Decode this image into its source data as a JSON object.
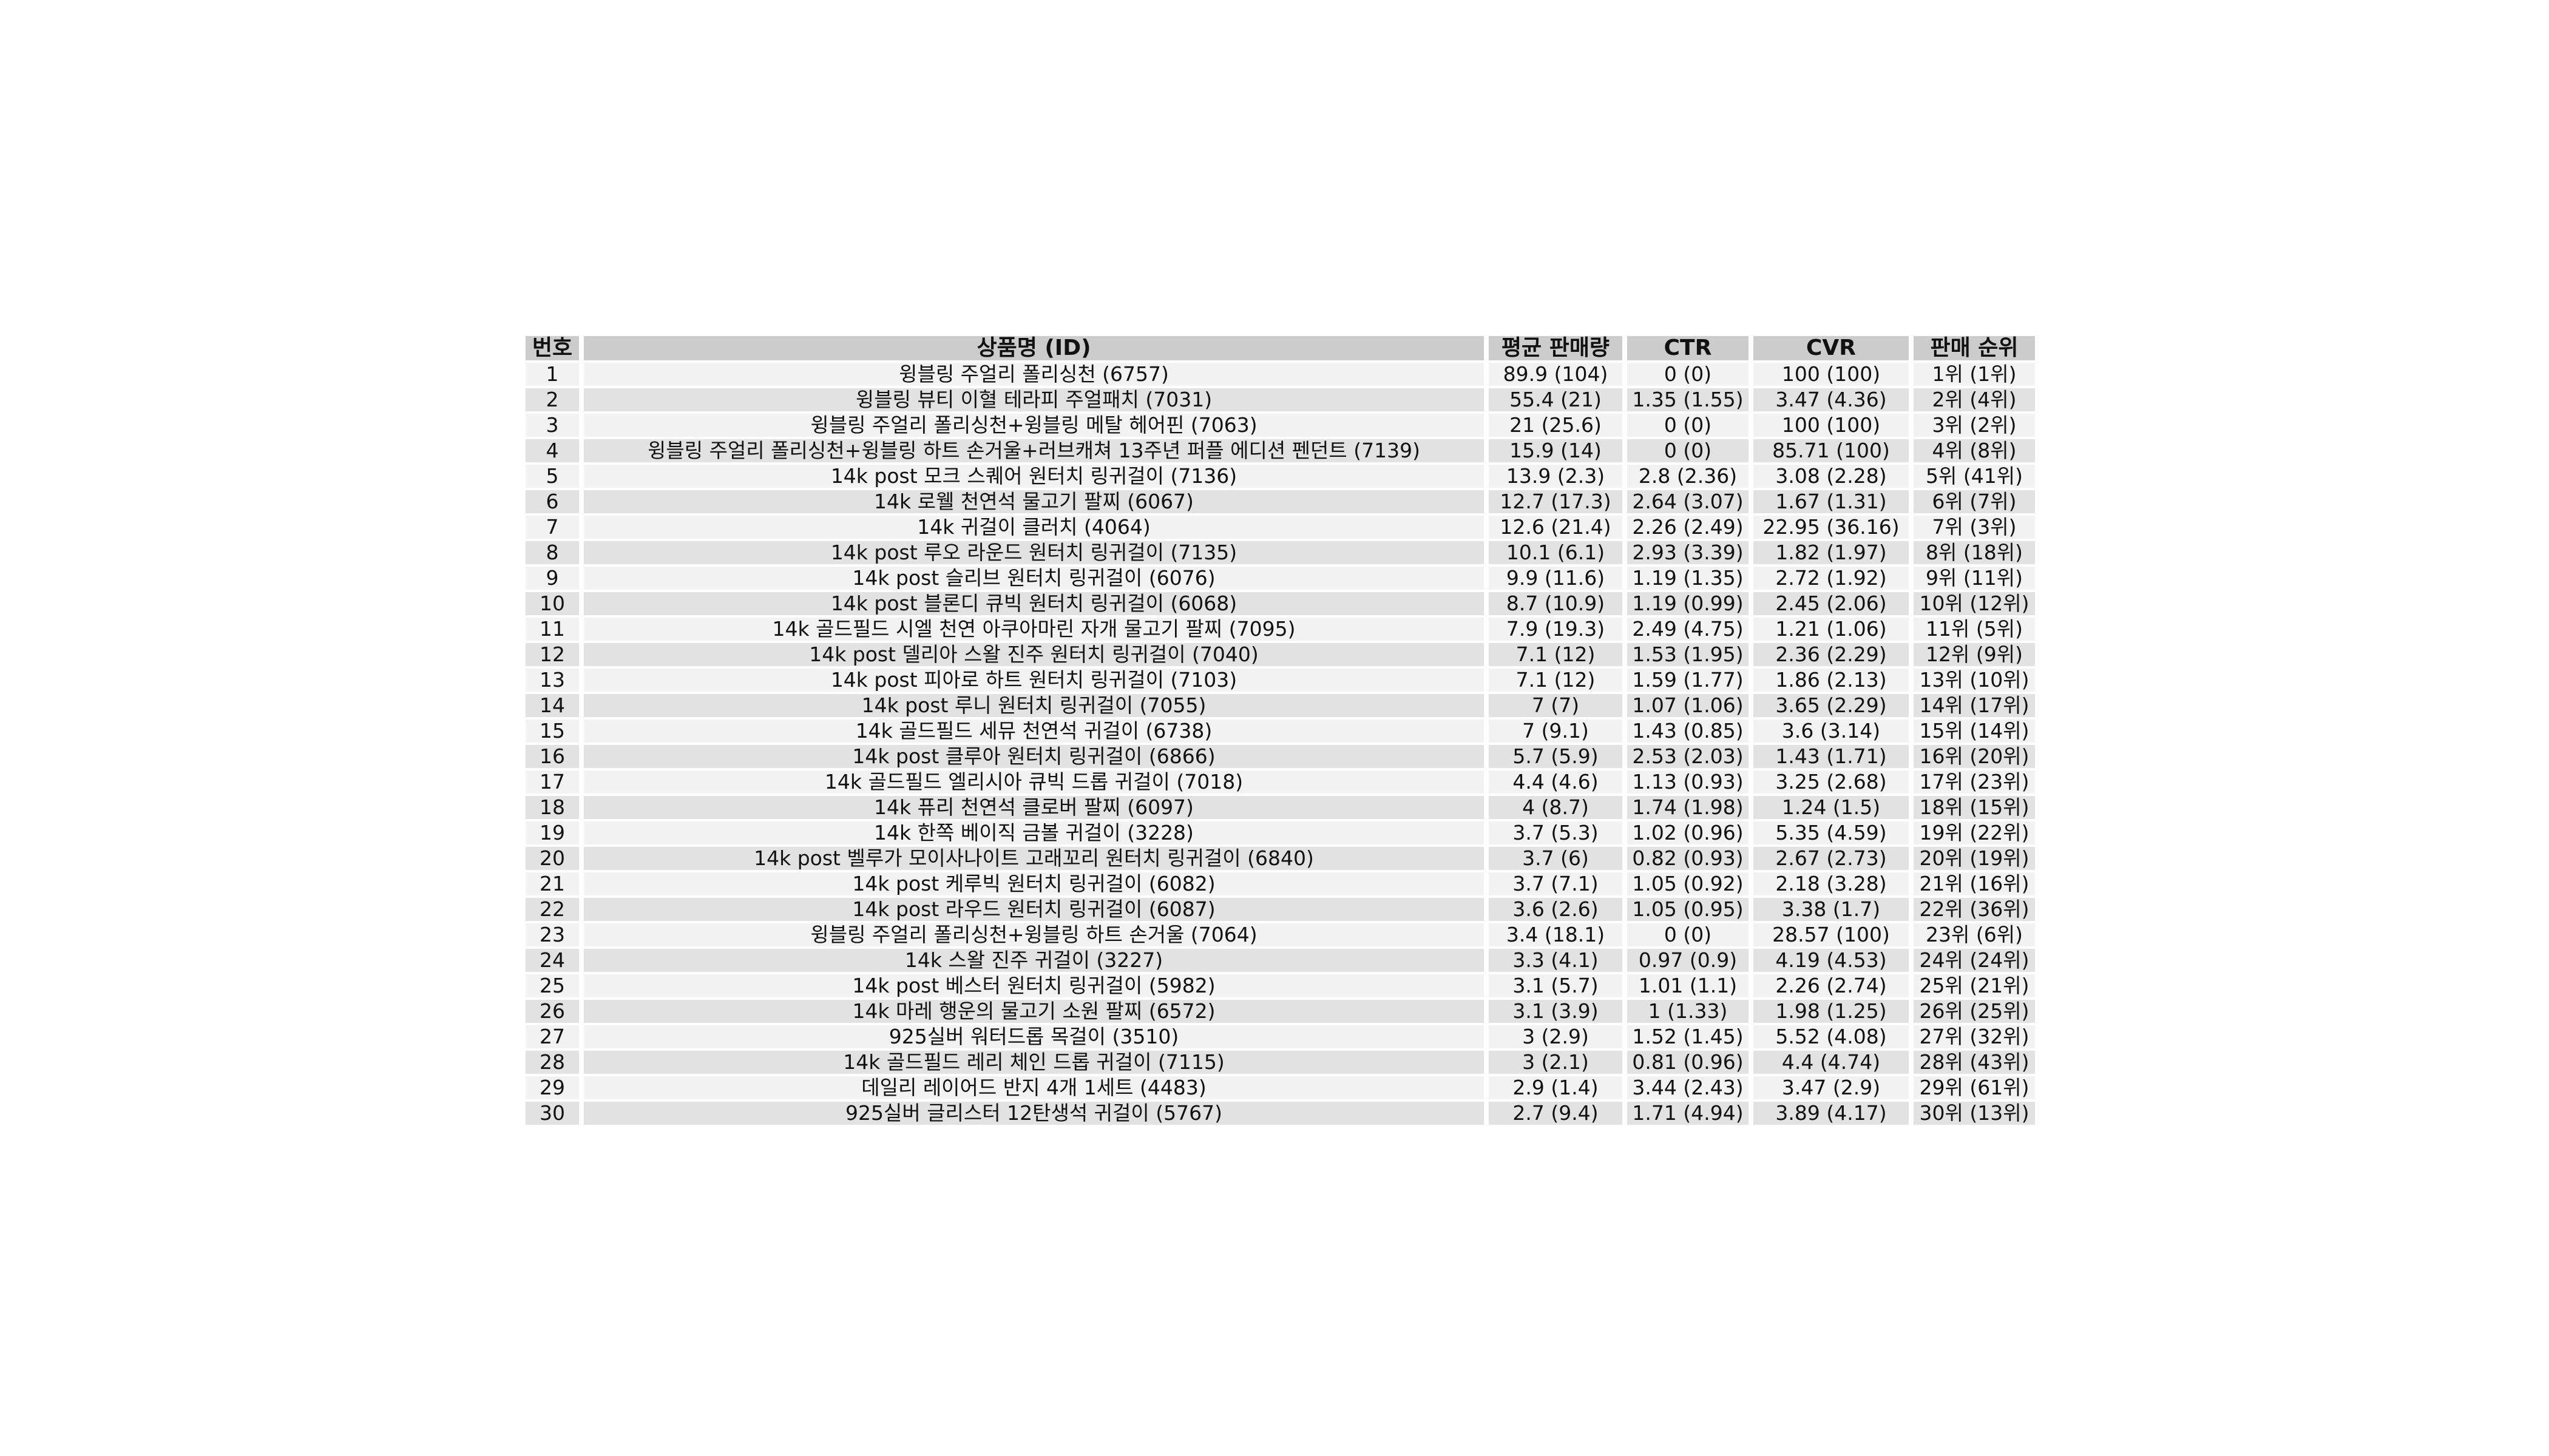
{
  "table": {
    "headers": {
      "no": "번호",
      "name": "상품명 (ID)",
      "avg_sales": "평균 판매량",
      "ctr": "CTR",
      "cvr": "CVR",
      "rank": "판매 순위"
    },
    "rows": [
      {
        "no": "1",
        "name": "윙블링 주얼리 폴리싱천 (6757)",
        "avg_sales": "89.9 (104)",
        "ctr": "0 (0)",
        "cvr": "100 (100)",
        "rank": "1위 (1위)"
      },
      {
        "no": "2",
        "name": "윙블링 뷰티 이혈 테라피 주얼패치 (7031)",
        "avg_sales": "55.4 (21)",
        "ctr": "1.35 (1.55)",
        "cvr": "3.47 (4.36)",
        "rank": "2위 (4위)"
      },
      {
        "no": "3",
        "name": "윙블링 주얼리 폴리싱천+윙블링 메탈 헤어핀 (7063)",
        "avg_sales": "21 (25.6)",
        "ctr": "0 (0)",
        "cvr": "100 (100)",
        "rank": "3위 (2위)"
      },
      {
        "no": "4",
        "name": "윙블링 주얼리 폴리싱천+윙블링 하트 손거울+러브캐쳐 13주년 퍼플 에디션 펜던트 (7139)",
        "avg_sales": "15.9 (14)",
        "ctr": "0 (0)",
        "cvr": "85.71 (100)",
        "rank": "4위 (8위)"
      },
      {
        "no": "5",
        "name": "14k post 모크 스퀘어 원터치 링귀걸이 (7136)",
        "avg_sales": "13.9 (2.3)",
        "ctr": "2.8 (2.36)",
        "cvr": "3.08 (2.28)",
        "rank": "5위 (41위)"
      },
      {
        "no": "6",
        "name": "14k 로웰 천연석 물고기 팔찌 (6067)",
        "avg_sales": "12.7 (17.3)",
        "ctr": "2.64 (3.07)",
        "cvr": "1.67 (1.31)",
        "rank": "6위 (7위)"
      },
      {
        "no": "7",
        "name": "14k 귀걸이 클러치 (4064)",
        "avg_sales": "12.6 (21.4)",
        "ctr": "2.26 (2.49)",
        "cvr": "22.95 (36.16)",
        "rank": "7위 (3위)"
      },
      {
        "no": "8",
        "name": "14k post 루오 라운드 원터치 링귀걸이 (7135)",
        "avg_sales": "10.1 (6.1)",
        "ctr": "2.93 (3.39)",
        "cvr": "1.82 (1.97)",
        "rank": "8위 (18위)"
      },
      {
        "no": "9",
        "name": "14k post 슬리브 원터치 링귀걸이 (6076)",
        "avg_sales": "9.9 (11.6)",
        "ctr": "1.19 (1.35)",
        "cvr": "2.72 (1.92)",
        "rank": "9위 (11위)"
      },
      {
        "no": "10",
        "name": "14k post 블론디 큐빅 원터치 링귀걸이 (6068)",
        "avg_sales": "8.7 (10.9)",
        "ctr": "1.19 (0.99)",
        "cvr": "2.45 (2.06)",
        "rank": "10위 (12위)"
      },
      {
        "no": "11",
        "name": "14k 골드필드 시엘 천연 아쿠아마린 자개 물고기 팔찌 (7095)",
        "avg_sales": "7.9 (19.3)",
        "ctr": "2.49 (4.75)",
        "cvr": "1.21 (1.06)",
        "rank": "11위 (5위)"
      },
      {
        "no": "12",
        "name": "14k post 델리아 스왈 진주 원터치 링귀걸이 (7040)",
        "avg_sales": "7.1 (12)",
        "ctr": "1.53 (1.95)",
        "cvr": "2.36 (2.29)",
        "rank": "12위 (9위)"
      },
      {
        "no": "13",
        "name": "14k post 피아로 하트 원터치 링귀걸이 (7103)",
        "avg_sales": "7.1 (12)",
        "ctr": "1.59 (1.77)",
        "cvr": "1.86 (2.13)",
        "rank": "13위 (10위)"
      },
      {
        "no": "14",
        "name": "14k post 루니 원터치 링귀걸이 (7055)",
        "avg_sales": "7 (7)",
        "ctr": "1.07 (1.06)",
        "cvr": "3.65 (2.29)",
        "rank": "14위 (17위)"
      },
      {
        "no": "15",
        "name": "14k 골드필드 세뮤 천연석 귀걸이 (6738)",
        "avg_sales": "7 (9.1)",
        "ctr": "1.43 (0.85)",
        "cvr": "3.6 (3.14)",
        "rank": "15위 (14위)"
      },
      {
        "no": "16",
        "name": "14k post 클루아 원터치 링귀걸이 (6866)",
        "avg_sales": "5.7 (5.9)",
        "ctr": "2.53 (2.03)",
        "cvr": "1.43 (1.71)",
        "rank": "16위 (20위)"
      },
      {
        "no": "17",
        "name": "14k 골드필드 엘리시아 큐빅 드롭 귀걸이 (7018)",
        "avg_sales": "4.4 (4.6)",
        "ctr": "1.13 (0.93)",
        "cvr": "3.25 (2.68)",
        "rank": "17위 (23위)"
      },
      {
        "no": "18",
        "name": "14k 퓨리 천연석 클로버 팔찌 (6097)",
        "avg_sales": "4 (8.7)",
        "ctr": "1.74 (1.98)",
        "cvr": "1.24 (1.5)",
        "rank": "18위 (15위)"
      },
      {
        "no": "19",
        "name": "14k 한쪽 베이직 금볼 귀걸이 (3228)",
        "avg_sales": "3.7 (5.3)",
        "ctr": "1.02 (0.96)",
        "cvr": "5.35 (4.59)",
        "rank": "19위 (22위)"
      },
      {
        "no": "20",
        "name": "14k post 벨루가 모이사나이트 고래꼬리 원터치 링귀걸이 (6840)",
        "avg_sales": "3.7 (6)",
        "ctr": "0.82 (0.93)",
        "cvr": "2.67 (2.73)",
        "rank": "20위 (19위)"
      },
      {
        "no": "21",
        "name": "14k post 케루빅 원터치 링귀걸이 (6082)",
        "avg_sales": "3.7 (7.1)",
        "ctr": "1.05 (0.92)",
        "cvr": "2.18 (3.28)",
        "rank": "21위 (16위)"
      },
      {
        "no": "22",
        "name": "14k post 라우드 원터치 링귀걸이 (6087)",
        "avg_sales": "3.6 (2.6)",
        "ctr": "1.05 (0.95)",
        "cvr": "3.38 (1.7)",
        "rank": "22위 (36위)"
      },
      {
        "no": "23",
        "name": "윙블링 주얼리 폴리싱천+윙블링 하트 손거울 (7064)",
        "avg_sales": "3.4 (18.1)",
        "ctr": "0 (0)",
        "cvr": "28.57 (100)",
        "rank": "23위 (6위)"
      },
      {
        "no": "24",
        "name": "14k 스왈 진주 귀걸이 (3227)",
        "avg_sales": "3.3 (4.1)",
        "ctr": "0.97 (0.9)",
        "cvr": "4.19 (4.53)",
        "rank": "24위 (24위)"
      },
      {
        "no": "25",
        "name": "14k post 베스터 원터치 링귀걸이 (5982)",
        "avg_sales": "3.1 (5.7)",
        "ctr": "1.01 (1.1)",
        "cvr": "2.26 (2.74)",
        "rank": "25위 (21위)"
      },
      {
        "no": "26",
        "name": "14k 마레 행운의 물고기 소원 팔찌 (6572)",
        "avg_sales": "3.1 (3.9)",
        "ctr": "1 (1.33)",
        "cvr": "1.98 (1.25)",
        "rank": "26위 (25위)"
      },
      {
        "no": "27",
        "name": "925실버 워터드롭 목걸이 (3510)",
        "avg_sales": "3 (2.9)",
        "ctr": "1.52 (1.45)",
        "cvr": "5.52 (4.08)",
        "rank": "27위 (32위)"
      },
      {
        "no": "28",
        "name": "14k 골드필드 레리 체인 드롭 귀걸이 (7115)",
        "avg_sales": "3 (2.1)",
        "ctr": "0.81 (0.96)",
        "cvr": "4.4 (4.74)",
        "rank": "28위 (43위)"
      },
      {
        "no": "29",
        "name": "데일리 레이어드 반지 4개 1세트 (4483)",
        "avg_sales": "2.9 (1.4)",
        "ctr": "3.44 (2.43)",
        "cvr": "3.47 (2.9)",
        "rank": "29위 (61위)"
      },
      {
        "no": "30",
        "name": "925실버 글리스터 12탄생석 귀걸이 (5767)",
        "avg_sales": "2.7 (9.4)",
        "ctr": "1.71 (4.94)",
        "cvr": "3.89 (4.17)",
        "rank": "30위 (13위)"
      }
    ]
  }
}
